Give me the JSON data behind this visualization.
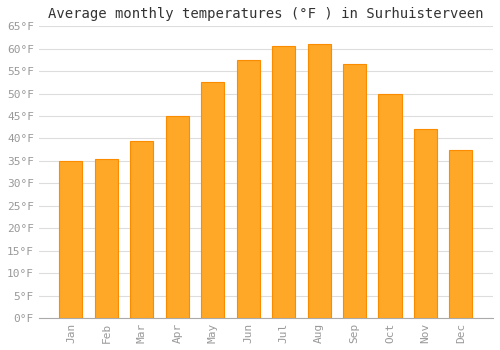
{
  "title": "Average monthly temperatures (°F ) in Surhuisterveen",
  "months": [
    "Jan",
    "Feb",
    "Mar",
    "Apr",
    "May",
    "Jun",
    "Jul",
    "Aug",
    "Sep",
    "Oct",
    "Nov",
    "Dec"
  ],
  "values": [
    35.0,
    35.5,
    39.5,
    45.0,
    52.5,
    57.5,
    60.5,
    61.0,
    56.5,
    50.0,
    42.0,
    37.5
  ],
  "bar_color_face": "#FFA726",
  "bar_color_edge": "#FB8C00",
  "bar_width": 0.65,
  "ylim": [
    0,
    65
  ],
  "yticks": [
    0,
    5,
    10,
    15,
    20,
    25,
    30,
    35,
    40,
    45,
    50,
    55,
    60,
    65
  ],
  "ytick_labels": [
    "0°F",
    "5°F",
    "10°F",
    "15°F",
    "20°F",
    "25°F",
    "30°F",
    "35°F",
    "40°F",
    "45°F",
    "50°F",
    "55°F",
    "60°F",
    "65°F"
  ],
  "grid_color": "#dddddd",
  "background_color": "#ffffff",
  "title_fontsize": 10,
  "tick_fontsize": 8,
  "font_family": "monospace",
  "tick_color": "#999999",
  "spine_color": "#aaaaaa"
}
